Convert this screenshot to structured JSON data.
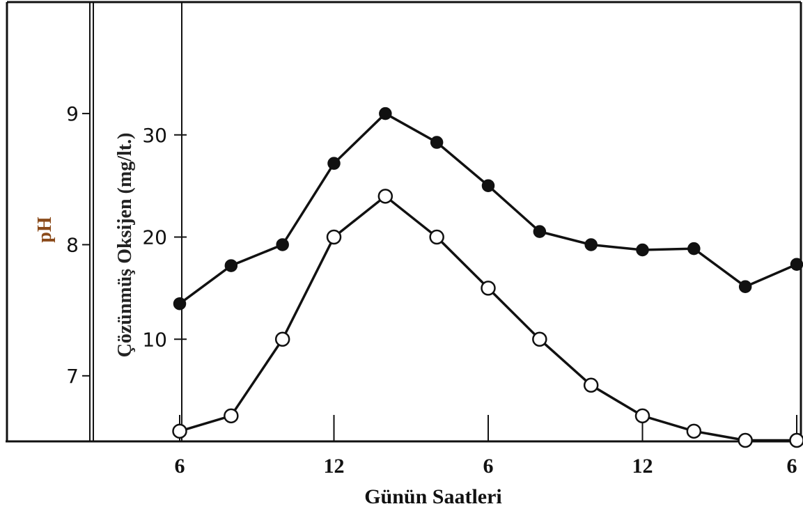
{
  "chart_data": {
    "type": "line",
    "title": "",
    "xlabel": "Günün Saatleri",
    "x_tick_labels": [
      "6",
      "12",
      "6",
      "12",
      "6"
    ],
    "ylabel_ph": "pH",
    "ylabel_do": "Çözünmüş Oksijen (mg/lt.)",
    "ph_ticks": [
      "9",
      "8",
      "7"
    ],
    "do_ticks": [
      "30",
      "20",
      "10"
    ],
    "ph_range": [
      6.5,
      9.85
    ],
    "do_range": [
      0,
      43
    ],
    "grid": false,
    "series": [
      {
        "axis": "pH",
        "marker": "filled-circle",
        "x": [
          6,
          8,
          10,
          12,
          14,
          16,
          18,
          20,
          22,
          24,
          26,
          28,
          30
        ],
        "values": [
          7.55,
          7.84,
          8.0,
          8.62,
          9.0,
          8.78,
          8.45,
          8.1,
          8.0,
          7.96,
          7.97,
          7.68,
          7.85
        ]
      },
      {
        "axis": "Çözünmüş Oksijen",
        "marker": "open-circle",
        "x": [
          6,
          8,
          10,
          12,
          14,
          16,
          18,
          20,
          22,
          24,
          26,
          28,
          30
        ],
        "values": [
          1,
          2.5,
          10,
          20,
          24,
          20,
          15,
          10,
          5.5,
          2.5,
          1,
          0.1,
          0.1
        ]
      }
    ]
  },
  "colors": {
    "line": "#111111",
    "marker_fill": "#111111",
    "open_marker_fill": "#ffffff",
    "background": "#ffffff",
    "ph_title": "#8a4a1a"
  }
}
